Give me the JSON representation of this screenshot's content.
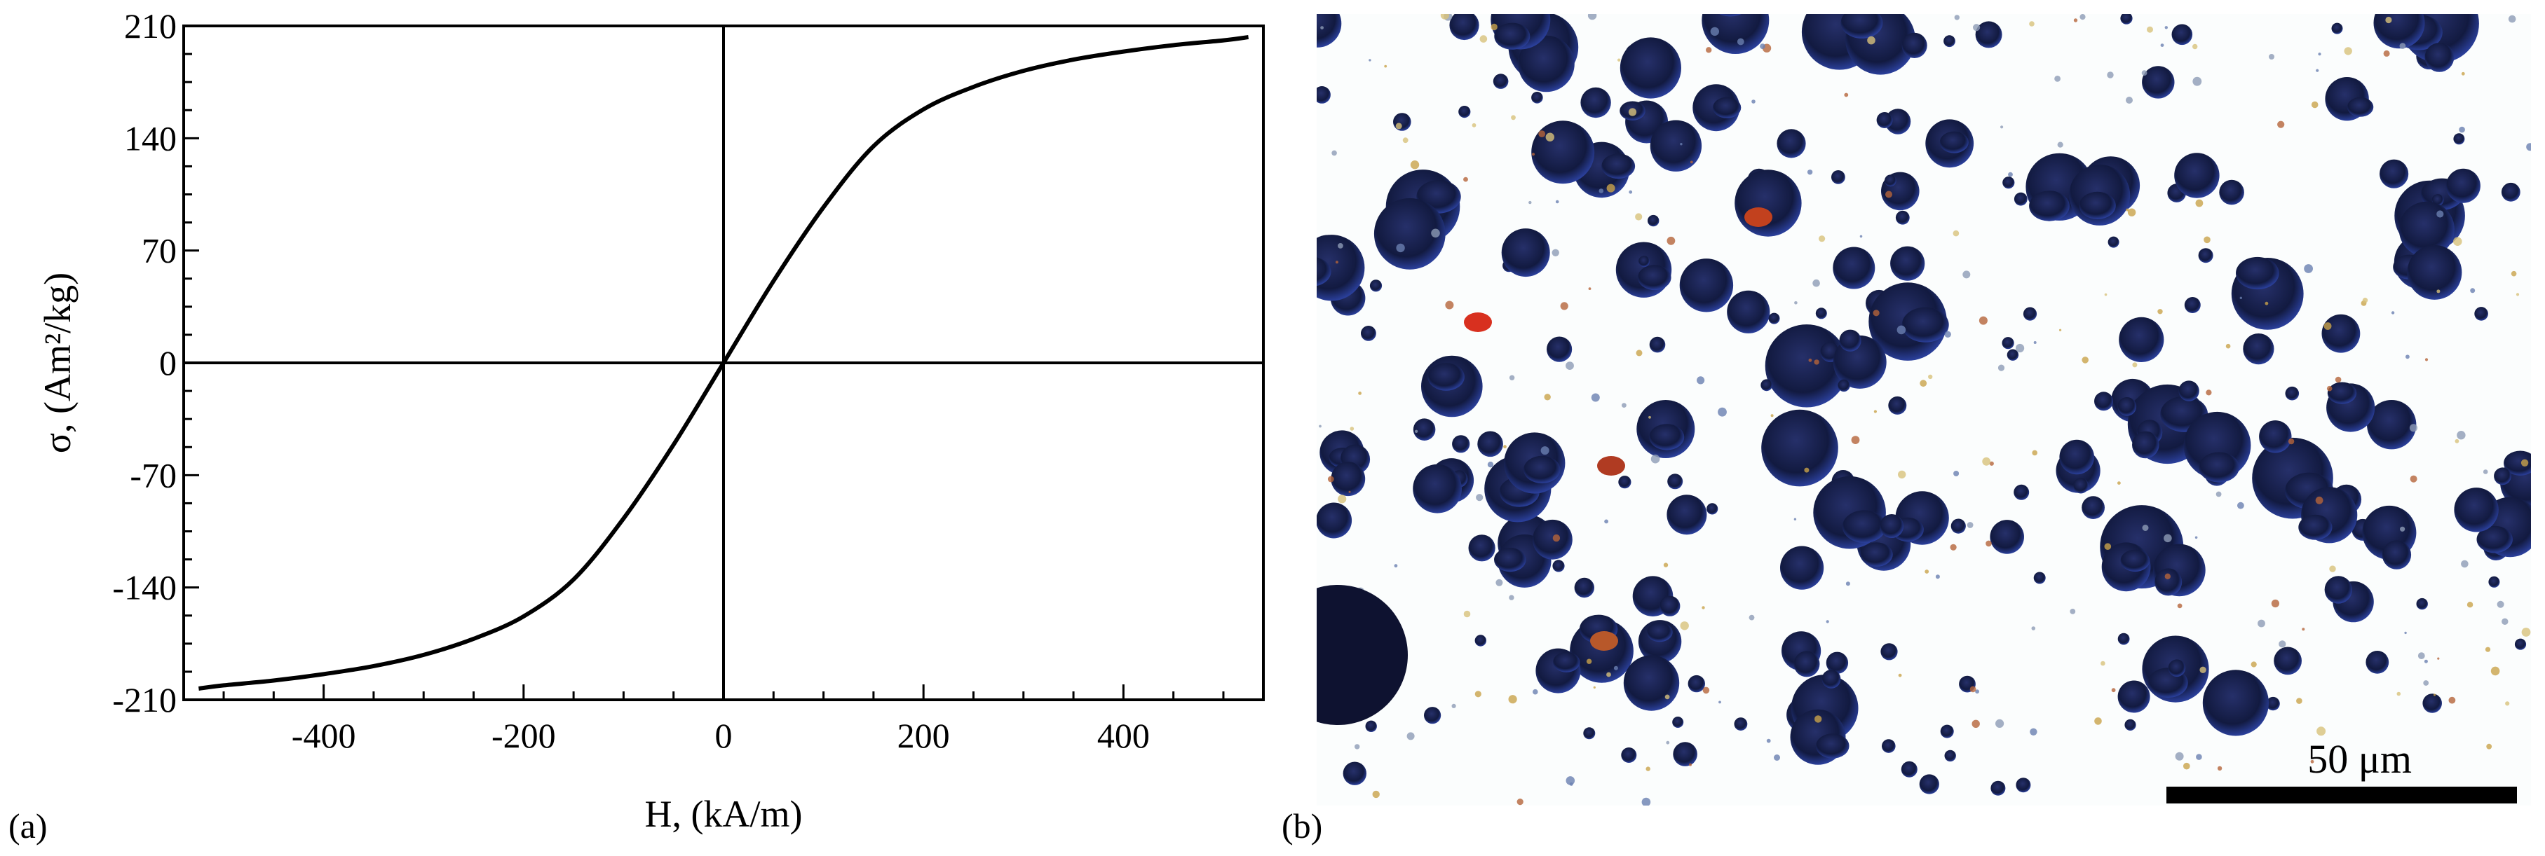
{
  "panel_a": {
    "label": "(a)"
  },
  "panel_b": {
    "label": "(b)",
    "scale_bar_label": "50 μm"
  },
  "chart_data": {
    "type": "line",
    "title": "",
    "xlabel": "H, (kA/m)",
    "ylabel": "σ, (Am²/kg)",
    "xlim": [
      -540,
      540
    ],
    "ylim": [
      -210,
      210
    ],
    "xticks": [
      -400,
      -200,
      0,
      200,
      400
    ],
    "yticks": [
      -210,
      -140,
      -70,
      0,
      70,
      140,
      210
    ],
    "grid": false,
    "series": [
      {
        "x": [
          -525,
          -500,
          -450,
          -400,
          -350,
          -300,
          -250,
          -200,
          -150,
          -100,
          -50,
          0,
          50,
          100,
          150,
          200,
          250,
          300,
          350,
          400,
          450,
          500,
          525
        ],
        "y": [
          -203,
          -201,
          -198,
          -194,
          -189,
          -182,
          -172,
          -158,
          -135,
          -97,
          -51,
          0,
          51,
          97,
          135,
          158,
          172,
          182,
          189,
          194,
          198,
          201,
          203
        ],
        "color": "#000000"
      }
    ]
  }
}
